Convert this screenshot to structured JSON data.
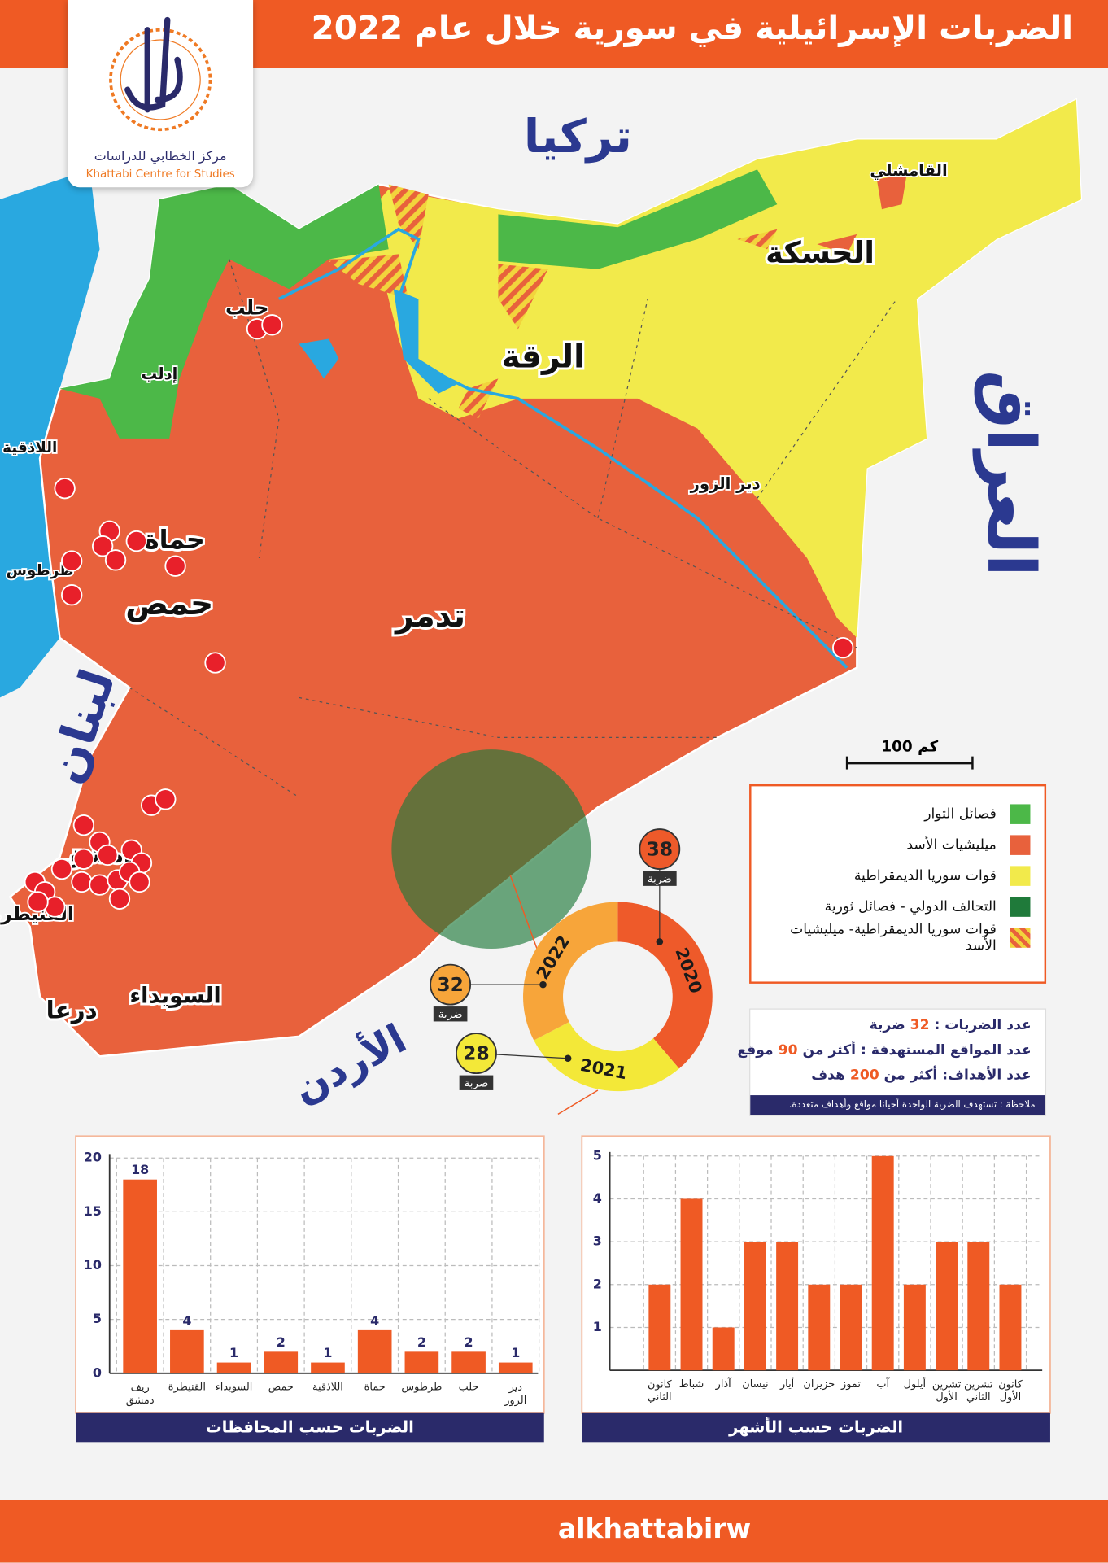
{
  "header": {
    "title": "الضربات الإسرائيلية في سورية خلال عام 2022"
  },
  "logo": {
    "name_ar": "مركز الخطابي للدراسات",
    "name_en": "Khattabi Centre for Studies"
  },
  "map": {
    "countries": [
      "تركيا",
      "العراق",
      "لبنان",
      "الأردن"
    ],
    "cities": [
      "القامشلي",
      "الحسكة",
      "حلب",
      "الرقة",
      "إدلب",
      "اللاذقية",
      "حماة",
      "طرطوس",
      "حمص",
      "تدمر",
      "دير الزور",
      "دمشق",
      "القنيطرة",
      "السويداء",
      "درعا"
    ],
    "scale": "100 كم"
  },
  "legend": [
    {
      "label": "فصائل الثوار",
      "color": "#4cb848"
    },
    {
      "label": "ميليشيات الأسد",
      "color": "#e8613c"
    },
    {
      "label": "قوات سوريا الديمقراطية",
      "color": "#f2ea4b"
    },
    {
      "label": "التحالف الدولي - فصائل ثورية",
      "color": "#1f7a3a"
    },
    {
      "label": "قوات سوريا الديمقراطية- ميليشيات الأسد",
      "colors": [
        "#f2d43c",
        "#e8613c"
      ]
    }
  ],
  "stats": {
    "lines": [
      {
        "label": "عدد الضربات :",
        "value": "32 ضربة"
      },
      {
        "label": "عدد المواقع المستهدفة :",
        "value": "أكثر من 90 موقع"
      },
      {
        "label": "عدد الأهداف:",
        "value": "أكثر من 200 هدف"
      }
    ],
    "note": "ملاحظة : تستهدف الضربة الواحدة أحيانا مواقع وأهداف متعددة."
  },
  "chart_data": [
    {
      "type": "pie",
      "donut": true,
      "categories": [
        "2020",
        "2021",
        "2022"
      ],
      "values": [
        38,
        28,
        32
      ],
      "colors": [
        "#ee5a2a",
        "#f3e838",
        "#f7a53a"
      ],
      "data_label_caption": "ضربة"
    },
    {
      "type": "bar",
      "title": "الضربات حسب المحافظات",
      "categories": [
        "ريف دمشق",
        "القنيطرة",
        "السويداء",
        "حمص",
        "اللاذقية",
        "حماة",
        "طرطوس",
        "حلب",
        "دير الزور"
      ],
      "values": [
        18,
        4,
        1,
        2,
        1,
        4,
        2,
        2,
        1
      ],
      "color": "#ef5a24",
      "ylim": [
        0,
        20
      ],
      "yticks": [
        0,
        5,
        10,
        15,
        20
      ],
      "grid": true,
      "data_labels": true
    },
    {
      "type": "bar",
      "title": "الضربات حسب الأشهر",
      "categories": [
        "كانون الثاني",
        "شباط",
        "آذار",
        "نيسان",
        "أيار",
        "حزيران",
        "تموز",
        "آب",
        "أيلول",
        "تشرين الأول",
        "تشرين الثاني",
        "كانون الأول"
      ],
      "values": [
        2,
        4,
        1,
        3,
        3,
        2,
        2,
        5,
        2,
        3,
        3,
        2
      ],
      "color": "#ef5a24",
      "ylim": [
        0,
        5
      ],
      "yticks": [
        1,
        2,
        3,
        4,
        5
      ],
      "grid": true,
      "data_labels": false
    }
  ],
  "footer": {
    "handle": "alkhattabirw"
  }
}
